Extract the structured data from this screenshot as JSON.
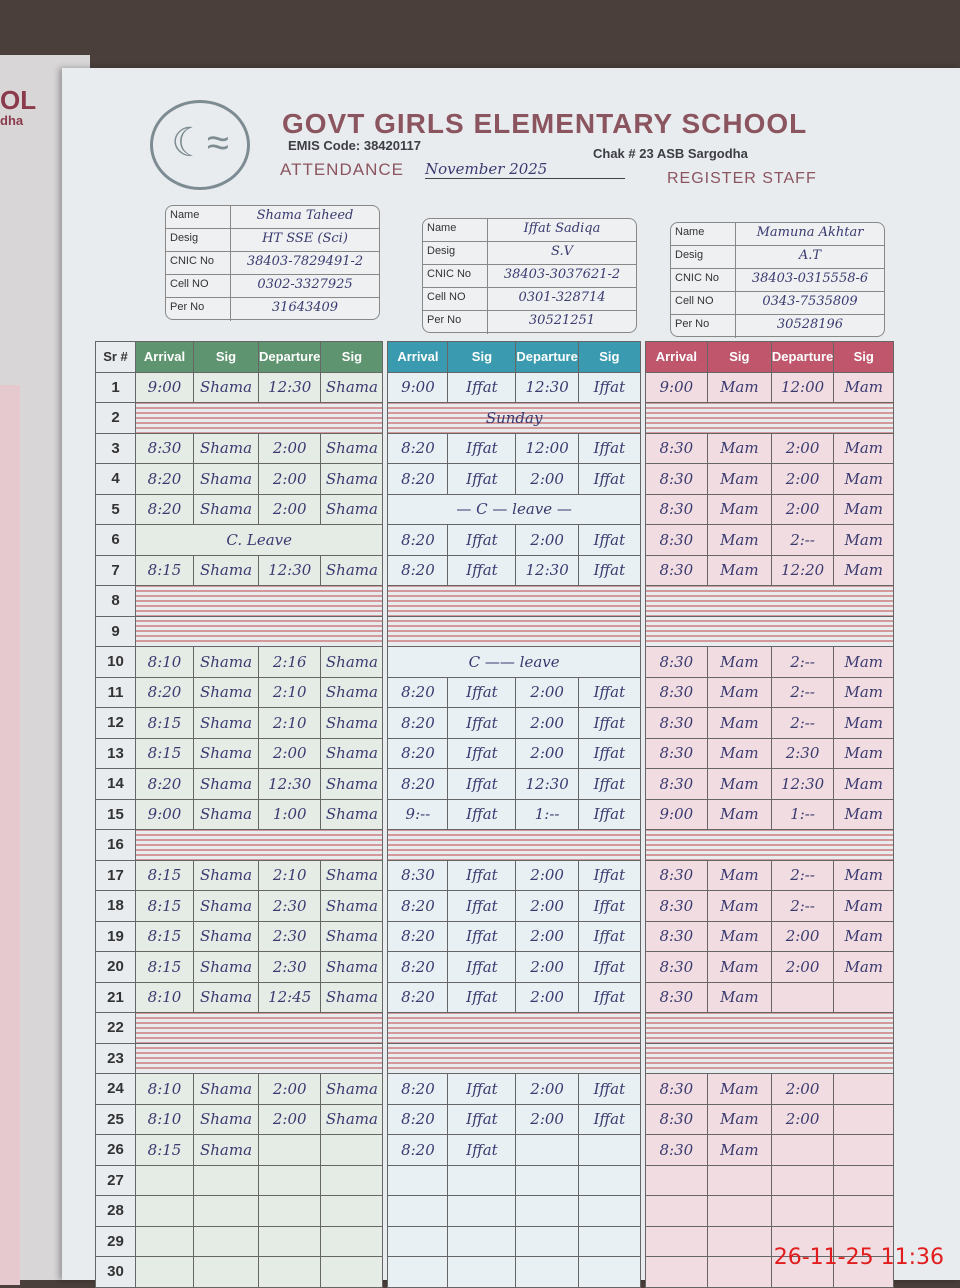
{
  "left_page": {
    "title_fragment": "OL",
    "subtitle_fragment": "dha"
  },
  "header": {
    "school": "GOVT GIRLS ELEMENTARY SCHOOL",
    "emis": "EMIS Code: 38420117",
    "location": "Chak # 23 ASB Sargodha",
    "attendance_label": "ATTENDANCE",
    "month": "November 2025",
    "register": "REGISTER STAFF"
  },
  "card_labels": [
    "Name",
    "Desig",
    "CNIC No",
    "Cell NO",
    "Per No"
  ],
  "staff": [
    {
      "name": "Shama Taheed",
      "desig": "HT SSE (Sci)",
      "cnic": "38403-7829491-2",
      "cell": "0302-3327925",
      "per": "31643409",
      "color": "#5f9470"
    },
    {
      "name": "Iffat Sadiqa",
      "desig": "S.V",
      "cnic": "38403-3037621-2",
      "cell": "0301-328714",
      "per": "30521251",
      "color": "#3a9bb0"
    },
    {
      "name": "Mamuna Akhtar",
      "desig": "A.T",
      "cnic": "38403-0315558-6",
      "cell": "0343-7535809",
      "per": "30528196",
      "color": "#c0566c"
    }
  ],
  "columns": {
    "sr": "Sr #",
    "arrival": "Arrival",
    "sig": "Sig",
    "departure": "Departure"
  },
  "rows": [
    {
      "sr": "1",
      "s": [
        [
          "9:00",
          "Shama",
          "12:30",
          "Shama"
        ],
        [
          "9:00",
          "Iffat",
          "12:30",
          "Iffat"
        ],
        [
          "9:00",
          "Mam",
          "12:00",
          "Mam"
        ]
      ]
    },
    {
      "sr": "2",
      "struck": true,
      "note": "Sunday"
    },
    {
      "sr": "3",
      "s": [
        [
          "8:30",
          "Shama",
          "2:00",
          "Shama"
        ],
        [
          "8:20",
          "Iffat",
          "12:00",
          "Iffat"
        ],
        [
          "8:30",
          "Mam",
          "2:00",
          "Mam"
        ]
      ]
    },
    {
      "sr": "4",
      "s": [
        [
          "8:20",
          "Shama",
          "2:00",
          "Shama"
        ],
        [
          "8:20",
          "Iffat",
          "2:00",
          "Iffat"
        ],
        [
          "8:30",
          "Mam",
          "2:00",
          "Mam"
        ]
      ]
    },
    {
      "sr": "5",
      "s": [
        [
          "8:20",
          "Shama",
          "2:00",
          "Shama"
        ],
        "— C — leave —",
        [
          "8:30",
          "Mam",
          "2:00",
          "Mam"
        ]
      ]
    },
    {
      "sr": "6",
      "s": [
        "C. Leave",
        [
          "8:20",
          "Iffat",
          "2:00",
          "Iffat"
        ],
        [
          "8:30",
          "Mam",
          "2:--",
          "Mam"
        ]
      ]
    },
    {
      "sr": "7",
      "s": [
        [
          "8:15",
          "Shama",
          "12:30",
          "Shama"
        ],
        [
          "8:20",
          "Iffat",
          "12:30",
          "Iffat"
        ],
        [
          "8:30",
          "Mam",
          "12:20",
          "Mam"
        ]
      ]
    },
    {
      "sr": "8",
      "struck": true
    },
    {
      "sr": "9",
      "struck": true
    },
    {
      "sr": "10",
      "s": [
        [
          "8:10",
          "Shama",
          "2:16",
          "Shama"
        ],
        "C —— leave",
        [
          "8:30",
          "Mam",
          "2:--",
          "Mam"
        ]
      ]
    },
    {
      "sr": "11",
      "s": [
        [
          "8:20",
          "Shama",
          "2:10",
          "Shama"
        ],
        [
          "8:20",
          "Iffat",
          "2:00",
          "Iffat"
        ],
        [
          "8:30",
          "Mam",
          "2:--",
          "Mam"
        ]
      ]
    },
    {
      "sr": "12",
      "s": [
        [
          "8:15",
          "Shama",
          "2:10",
          "Shama"
        ],
        [
          "8:20",
          "Iffat",
          "2:00",
          "Iffat"
        ],
        [
          "8:30",
          "Mam",
          "2:--",
          "Mam"
        ]
      ]
    },
    {
      "sr": "13",
      "s": [
        [
          "8:15",
          "Shama",
          "2:00",
          "Shama"
        ],
        [
          "8:20",
          "Iffat",
          "2:00",
          "Iffat"
        ],
        [
          "8:30",
          "Mam",
          "2:30",
          "Mam"
        ]
      ]
    },
    {
      "sr": "14",
      "s": [
        [
          "8:20",
          "Shama",
          "12:30",
          "Shama"
        ],
        [
          "8:20",
          "Iffat",
          "12:30",
          "Iffat"
        ],
        [
          "8:30",
          "Mam",
          "12:30",
          "Mam"
        ]
      ]
    },
    {
      "sr": "15",
      "s": [
        [
          "9:00",
          "Shama",
          "1:00",
          "Shama"
        ],
        [
          "9:--",
          "Iffat",
          "1:--",
          "Iffat"
        ],
        [
          "9:00",
          "Mam",
          "1:--",
          "Mam"
        ]
      ]
    },
    {
      "sr": "16",
      "struck": true
    },
    {
      "sr": "17",
      "s": [
        [
          "8:15",
          "Shama",
          "2:10",
          "Shama"
        ],
        [
          "8:30",
          "Iffat",
          "2:00",
          "Iffat"
        ],
        [
          "8:30",
          "Mam",
          "2:--",
          "Mam"
        ]
      ]
    },
    {
      "sr": "18",
      "s": [
        [
          "8:15",
          "Shama",
          "2:30",
          "Shama"
        ],
        [
          "8:20",
          "Iffat",
          "2:00",
          "Iffat"
        ],
        [
          "8:30",
          "Mam",
          "2:--",
          "Mam"
        ]
      ]
    },
    {
      "sr": "19",
      "s": [
        [
          "8:15",
          "Shama",
          "2:30",
          "Shama"
        ],
        [
          "8:20",
          "Iffat",
          "2:00",
          "Iffat"
        ],
        [
          "8:30",
          "Mam",
          "2:00",
          "Mam"
        ]
      ]
    },
    {
      "sr": "20",
      "s": [
        [
          "8:15",
          "Shama",
          "2:30",
          "Shama"
        ],
        [
          "8:20",
          "Iffat",
          "2:00",
          "Iffat"
        ],
        [
          "8:30",
          "Mam",
          "2:00",
          "Mam"
        ]
      ]
    },
    {
      "sr": "21",
      "s": [
        [
          "8:10",
          "Shama",
          "12:45",
          "Shama"
        ],
        [
          "8:20",
          "Iffat",
          "2:00",
          "Iffat"
        ],
        [
          "8:30",
          "Mam",
          "",
          ""
        ]
      ]
    },
    {
      "sr": "22",
      "struck": true
    },
    {
      "sr": "23",
      "struck": true
    },
    {
      "sr": "24",
      "s": [
        [
          "8:10",
          "Shama",
          "2:00",
          "Shama"
        ],
        [
          "8:20",
          "Iffat",
          "2:00",
          "Iffat"
        ],
        [
          "8:30",
          "Mam",
          "2:00",
          ""
        ]
      ]
    },
    {
      "sr": "25",
      "s": [
        [
          "8:10",
          "Shama",
          "2:00",
          "Shama"
        ],
        [
          "8:20",
          "Iffat",
          "2:00",
          "Iffat"
        ],
        [
          "8:30",
          "Mam",
          "2:00",
          ""
        ]
      ]
    },
    {
      "sr": "26",
      "s": [
        [
          "8:15",
          "Shama",
          "",
          ""
        ],
        [
          "8:20",
          "Iffat",
          "",
          ""
        ],
        [
          "8:30",
          "Mam",
          "",
          ""
        ]
      ]
    },
    {
      "sr": "27",
      "s": [
        [
          "",
          "",
          "",
          ""
        ],
        [
          "",
          "",
          "",
          ""
        ],
        [
          "",
          "",
          "",
          ""
        ]
      ]
    },
    {
      "sr": "28",
      "s": [
        [
          "",
          "",
          "",
          ""
        ],
        [
          "",
          "",
          "",
          ""
        ],
        [
          "",
          "",
          "",
          ""
        ]
      ]
    },
    {
      "sr": "29",
      "s": [
        [
          "",
          "",
          "",
          ""
        ],
        [
          "",
          "",
          "",
          ""
        ],
        [
          "",
          "",
          "",
          ""
        ]
      ]
    },
    {
      "sr": "30",
      "s": [
        [
          "",
          "",
          "",
          ""
        ],
        [
          "",
          "",
          "",
          ""
        ],
        [
          "",
          "",
          "",
          ""
        ]
      ]
    }
  ],
  "timestamp": "26-11-25  11:36"
}
